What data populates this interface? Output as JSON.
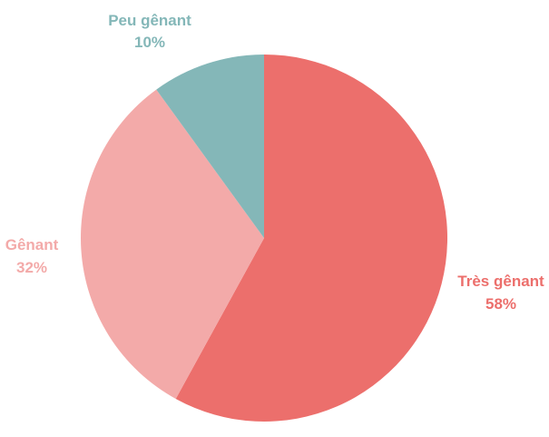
{
  "chart_data": {
    "type": "pie",
    "title": "",
    "slices": [
      {
        "label": "Très gênant",
        "value": 58,
        "value_label": "58%",
        "color": "#ec6f6c"
      },
      {
        "label": "Gênant",
        "value": 32,
        "value_label": "32%",
        "color": "#f3aaa9"
      },
      {
        "label": "Peu gênant",
        "value": 10,
        "value_label": "10%",
        "color": "#84b7b8"
      }
    ],
    "start_angle_deg": 0,
    "direction": "clockwise",
    "legend": "none"
  }
}
